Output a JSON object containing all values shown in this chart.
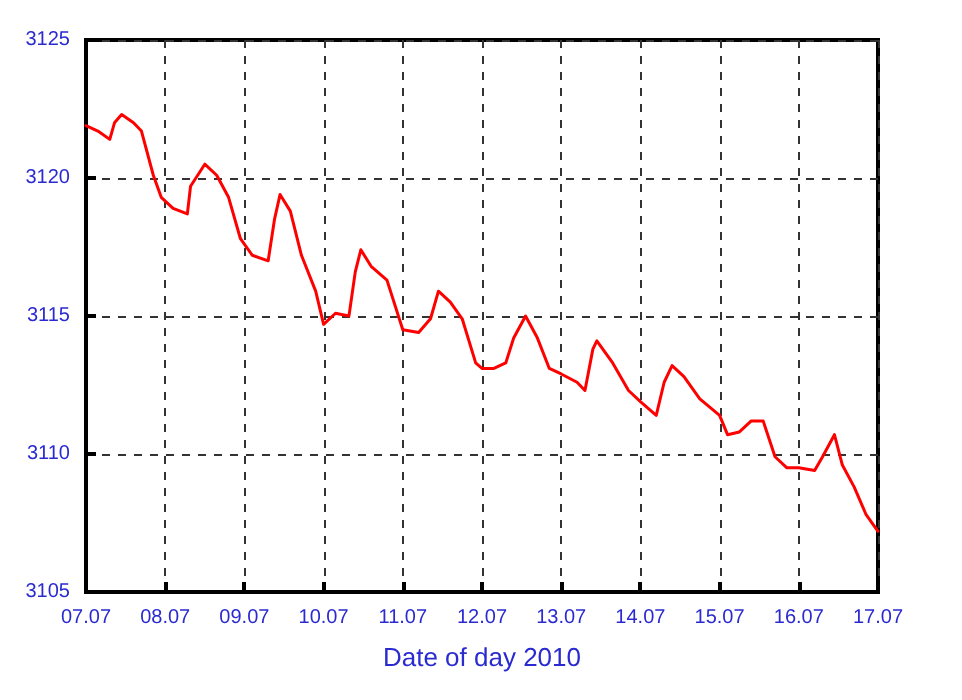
{
  "chart_data": {
    "type": "line",
    "xlabel": "Date of day 2010",
    "x": [
      "2010-07-07T00:00",
      "2010-07-07T03:36",
      "2010-07-07T07:12",
      "2010-07-07T08:38",
      "2010-07-07T10:48",
      "2010-07-07T14:24",
      "2010-07-07T16:48",
      "2010-07-07T20:24",
      "2010-07-07T22:48",
      "2010-07-08T02:24",
      "2010-07-08T06:43",
      "2010-07-08T07:41",
      "2010-07-08T12:00",
      "2010-07-08T15:36",
      "2010-07-08T19:12",
      "2010-07-08T22:48",
      "2010-07-09T02:24",
      "2010-07-09T07:12",
      "2010-07-09T09:07",
      "2010-07-09T10:48",
      "2010-07-09T13:55",
      "2010-07-09T17:17",
      "2010-07-09T21:36",
      "2010-07-10T00:00",
      "2010-07-10T03:36",
      "2010-07-10T07:41",
      "2010-07-10T09:36",
      "2010-07-10T11:17",
      "2010-07-10T14:24",
      "2010-07-10T19:12",
      "2010-07-11T00:00",
      "2010-07-11T04:48",
      "2010-07-11T08:24",
      "2010-07-11T10:48",
      "2010-07-11T14:24",
      "2010-07-11T18:00",
      "2010-07-11T22:05",
      "2010-07-12T00:00",
      "2010-07-12T03:36",
      "2010-07-12T07:12",
      "2010-07-12T09:36",
      "2010-07-12T13:12",
      "2010-07-12T16:48",
      "2010-07-12T20:24",
      "2010-07-13T00:00",
      "2010-07-13T04:48",
      "2010-07-13T07:12",
      "2010-07-13T09:36",
      "2010-07-13T10:48",
      "2010-07-13T15:36",
      "2010-07-13T20:24",
      "2010-07-14T00:00",
      "2010-07-14T04:48",
      "2010-07-14T07:12",
      "2010-07-14T09:36",
      "2010-07-14T13:12",
      "2010-07-14T18:00",
      "2010-07-15T00:00",
      "2010-07-15T02:24",
      "2010-07-15T06:00",
      "2010-07-15T09:36",
      "2010-07-15T13:12",
      "2010-07-15T16:48",
      "2010-07-15T20:24",
      "2010-07-16T00:00",
      "2010-07-16T04:48",
      "2010-07-16T07:12",
      "2010-07-16T10:48",
      "2010-07-16T13:12",
      "2010-07-16T16:48",
      "2010-07-16T20:24",
      "2010-07-17T00:00"
    ],
    "series": [
      {
        "color": "#ff0000",
        "values": [
          3121.9,
          3121.7,
          3121.4,
          3122.0,
          3122.3,
          3122.0,
          3121.7,
          3120.1,
          3119.3,
          3118.9,
          3118.7,
          3119.7,
          3120.5,
          3120.1,
          3119.3,
          3117.8,
          3117.2,
          3117.0,
          3118.5,
          3119.4,
          3118.8,
          3117.2,
          3115.9,
          3114.7,
          3115.1,
          3115.0,
          3116.6,
          3117.4,
          3116.8,
          3116.3,
          3114.5,
          3114.4,
          3114.9,
          3115.9,
          3115.5,
          3114.9,
          3113.3,
          3113.1,
          3113.1,
          3113.3,
          3114.2,
          3115.0,
          3114.2,
          3113.1,
          3112.9,
          3112.6,
          3112.3,
          3113.8,
          3114.1,
          3113.3,
          3112.3,
          3111.9,
          3111.4,
          3112.6,
          3113.2,
          3112.8,
          3112.0,
          3111.4,
          3110.7,
          3110.8,
          3111.2,
          3111.2,
          3109.9,
          3109.5,
          3109.5,
          3109.4,
          3109.9,
          3110.7,
          3109.6,
          3108.8,
          3107.8,
          3107.2
        ]
      }
    ],
    "xlim": [
      "2010-07-07",
      "2010-07-17"
    ],
    "xticks": [
      {
        "value": "2010-07-07",
        "label": "07.07"
      },
      {
        "value": "2010-07-08",
        "label": "08.07"
      },
      {
        "value": "2010-07-09",
        "label": "09.07"
      },
      {
        "value": "2010-07-10",
        "label": "10.07"
      },
      {
        "value": "2010-07-11",
        "label": "11.07"
      },
      {
        "value": "2010-07-12",
        "label": "12.07"
      },
      {
        "value": "2010-07-13",
        "label": "13.07"
      },
      {
        "value": "2010-07-14",
        "label": "14.07"
      },
      {
        "value": "2010-07-15",
        "label": "15.07"
      },
      {
        "value": "2010-07-16",
        "label": "16.07"
      },
      {
        "value": "2010-07-17",
        "label": "17.07"
      }
    ],
    "ylim": [
      3105,
      3125
    ],
    "yticks": [
      3105,
      3110,
      3115,
      3120,
      3125
    ],
    "grid": true,
    "marker": "none",
    "line_style": "solid"
  }
}
